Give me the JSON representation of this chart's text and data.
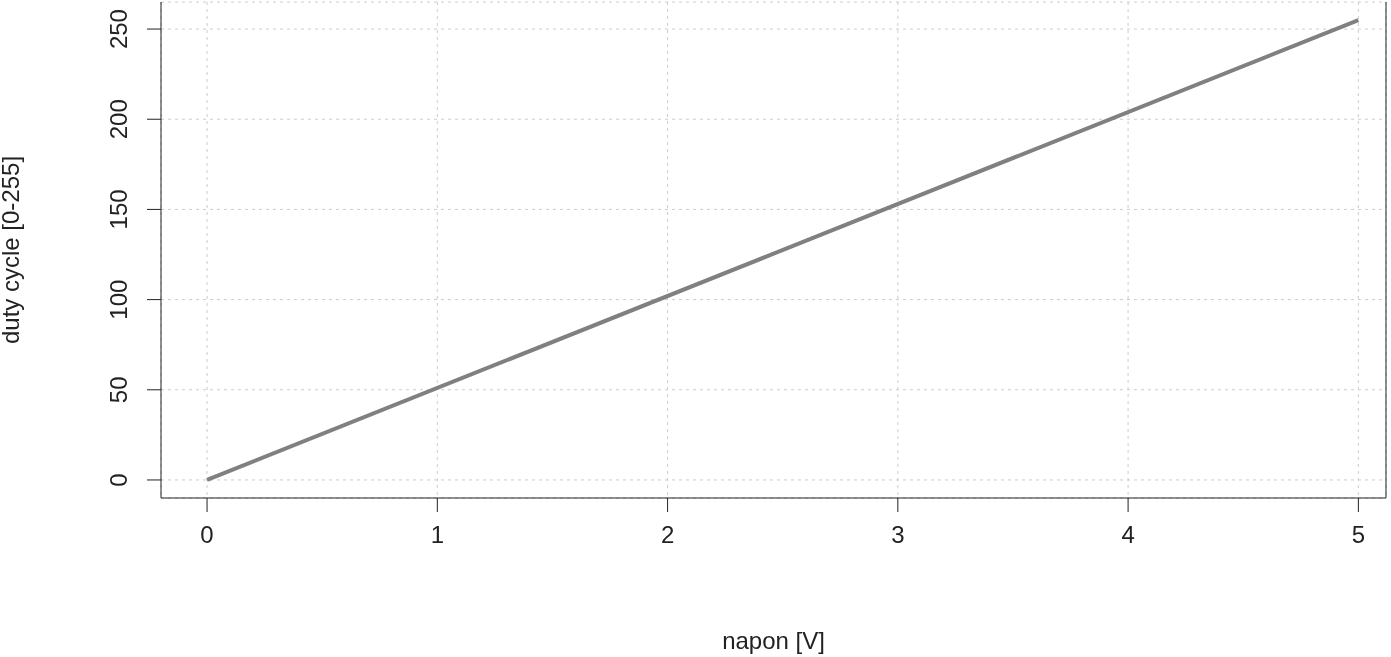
{
  "chart_data": {
    "type": "line",
    "xlabel": "napon [V]",
    "ylabel": "duty cycle [0-255]",
    "x": [
      0,
      5
    ],
    "series": [
      {
        "color": "#808080",
        "values": [
          0,
          255
        ]
      }
    ],
    "xlim": [
      -0.2,
      5.12
    ],
    "xticks": [
      0,
      1,
      2,
      3,
      4,
      5
    ],
    "ylim": [
      -10,
      265
    ],
    "yticks": [
      0,
      50,
      100,
      150,
      200,
      250
    ],
    "grid": true,
    "marker": "none",
    "line_style": "solid",
    "legend": false
  }
}
